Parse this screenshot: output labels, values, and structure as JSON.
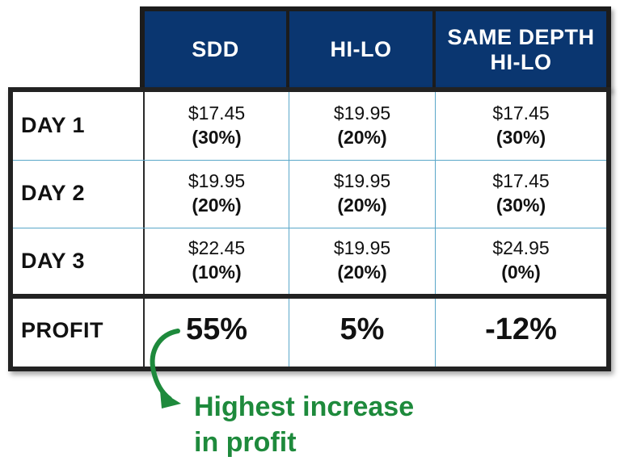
{
  "columns": [
    "SDD",
    "HI-LO",
    "SAME DEPTH\nHI-LO"
  ],
  "rows": [
    {
      "label": "DAY 1",
      "cells": [
        {
          "price": "$17.45",
          "pct": "(30%)"
        },
        {
          "price": "$19.95",
          "pct": "(20%)"
        },
        {
          "price": "$17.45",
          "pct": "(30%)"
        }
      ]
    },
    {
      "label": "DAY 2",
      "cells": [
        {
          "price": "$19.95",
          "pct": "(20%)"
        },
        {
          "price": "$19.95",
          "pct": "(20%)"
        },
        {
          "price": "$17.45",
          "pct": "(30%)"
        }
      ]
    },
    {
      "label": "DAY 3",
      "cells": [
        {
          "price": "$22.45",
          "pct": "(10%)"
        },
        {
          "price": "$19.95",
          "pct": "(20%)"
        },
        {
          "price": "$24.95",
          "pct": "(0%)"
        }
      ]
    }
  ],
  "profit": {
    "label": "PROFIT",
    "values": [
      "55%",
      "5%",
      "-12%"
    ]
  },
  "annotation": {
    "line1": "Highest increase",
    "line2": "in profit"
  },
  "colors": {
    "header": "#0a3670",
    "accent": "#1e8a3c",
    "grid": "#5aa7c9"
  }
}
